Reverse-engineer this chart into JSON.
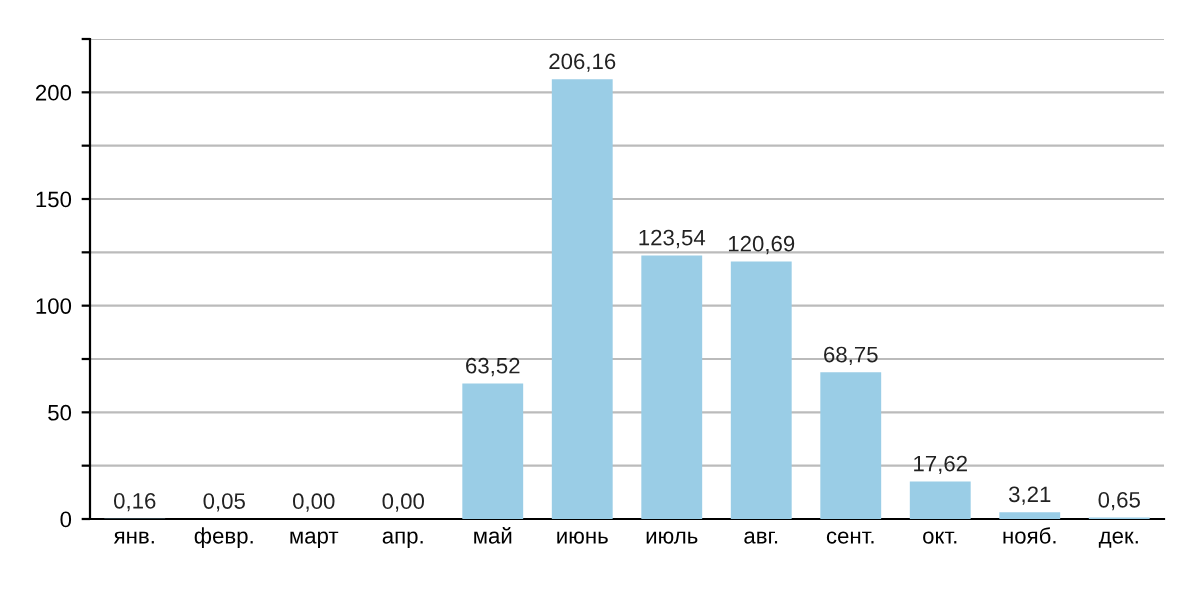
{
  "chart_data": {
    "type": "bar",
    "categories": [
      "янв.",
      "февр.",
      "март",
      "апр.",
      "май",
      "июнь",
      "июль",
      "авг.",
      "сент.",
      "окт.",
      "нояб.",
      "дек."
    ],
    "values": [
      0.16,
      0.05,
      0.0,
      0.0,
      63.52,
      206.16,
      123.54,
      120.69,
      68.75,
      17.62,
      3.21,
      0.65
    ],
    "value_labels": [
      "0,16",
      "0,05",
      "0,00",
      "0,00",
      "63,52",
      "206,16",
      "123,54",
      "120,69",
      "68,75",
      "17,62",
      "3,21",
      "0,65"
    ],
    "color": "#9acde6",
    "ylim": [
      0,
      225
    ],
    "yticks": [
      0,
      {
        "value": 25,
        "label": null
      },
      50,
      {
        "value": 75,
        "label": null
      },
      100,
      {
        "value": 125,
        "label": null
      },
      150,
      {
        "value": 175,
        "label": null
      },
      200,
      {
        "value": 225,
        "label": null
      }
    ],
    "grid": "y"
  }
}
